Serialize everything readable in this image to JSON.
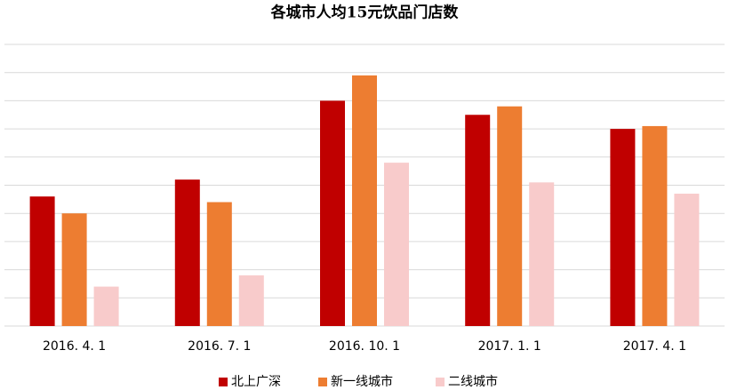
{
  "chart_data": {
    "type": "bar",
    "title": "各城市人均15元饮品门店数",
    "categories": [
      "2016. 4. 1",
      "2016. 7. 1",
      "2016. 10. 1",
      "2017. 1. 1",
      "2017. 4. 1"
    ],
    "series": [
      {
        "name": "北上广深",
        "color": "#c00000",
        "values": [
          4.6,
          5.2,
          8.0,
          7.5,
          7.0
        ]
      },
      {
        "name": "新一线城市",
        "color": "#ed7d31",
        "values": [
          4.0,
          4.4,
          8.9,
          7.8,
          7.1
        ]
      },
      {
        "name": "二线城市",
        "color": "#f8cbcb",
        "values": [
          1.4,
          1.8,
          5.8,
          5.1,
          4.7
        ]
      }
    ],
    "ylim": [
      0,
      10
    ],
    "yticks": [
      0,
      1,
      2,
      3,
      4,
      5,
      6,
      7,
      8,
      9,
      10
    ],
    "grid": true,
    "legend": "bottom"
  }
}
